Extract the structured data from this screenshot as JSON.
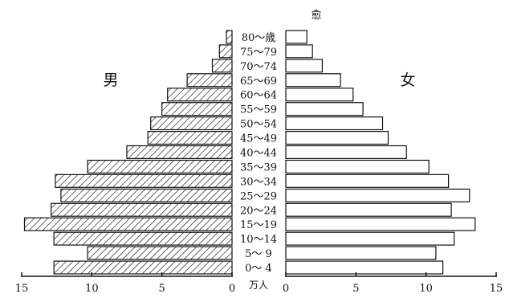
{
  "chart_data": {
    "type": "bar",
    "subtype": "population-pyramid",
    "top_mark": "愈",
    "categories": [
      "80～歳",
      "75～79",
      "70～74",
      "65～69",
      "60～64",
      "55～59",
      "50～54",
      "45～49",
      "40～44",
      "35～39",
      "30～34",
      "25～29",
      "20～24",
      "15～19",
      "10～14",
      "5～ 9",
      "0～ 4"
    ],
    "series": [
      {
        "name": "男",
        "side": "left",
        "values": [
          0.4,
          0.9,
          1.4,
          3.2,
          4.6,
          5.0,
          5.8,
          6.0,
          7.5,
          10.3,
          12.6,
          12.2,
          12.9,
          14.8,
          12.7,
          10.3,
          12.7
        ]
      },
      {
        "name": "女",
        "side": "right",
        "values": [
          1.5,
          1.9,
          2.6,
          3.9,
          4.8,
          5.5,
          6.9,
          7.3,
          8.6,
          10.2,
          11.6,
          13.1,
          11.8,
          13.5,
          12.0,
          10.7,
          11.2
        ]
      }
    ],
    "xlim": [
      0,
      15
    ],
    "left_ticks": [
      "15",
      "10",
      "5",
      "0"
    ],
    "right_ticks": [
      "0",
      "5",
      "10",
      "15"
    ],
    "unit_label": "万人",
    "grid": false,
    "styles": {
      "left_fill": "hatched",
      "right_fill": "#ffffff",
      "stroke": "#111111"
    }
  }
}
